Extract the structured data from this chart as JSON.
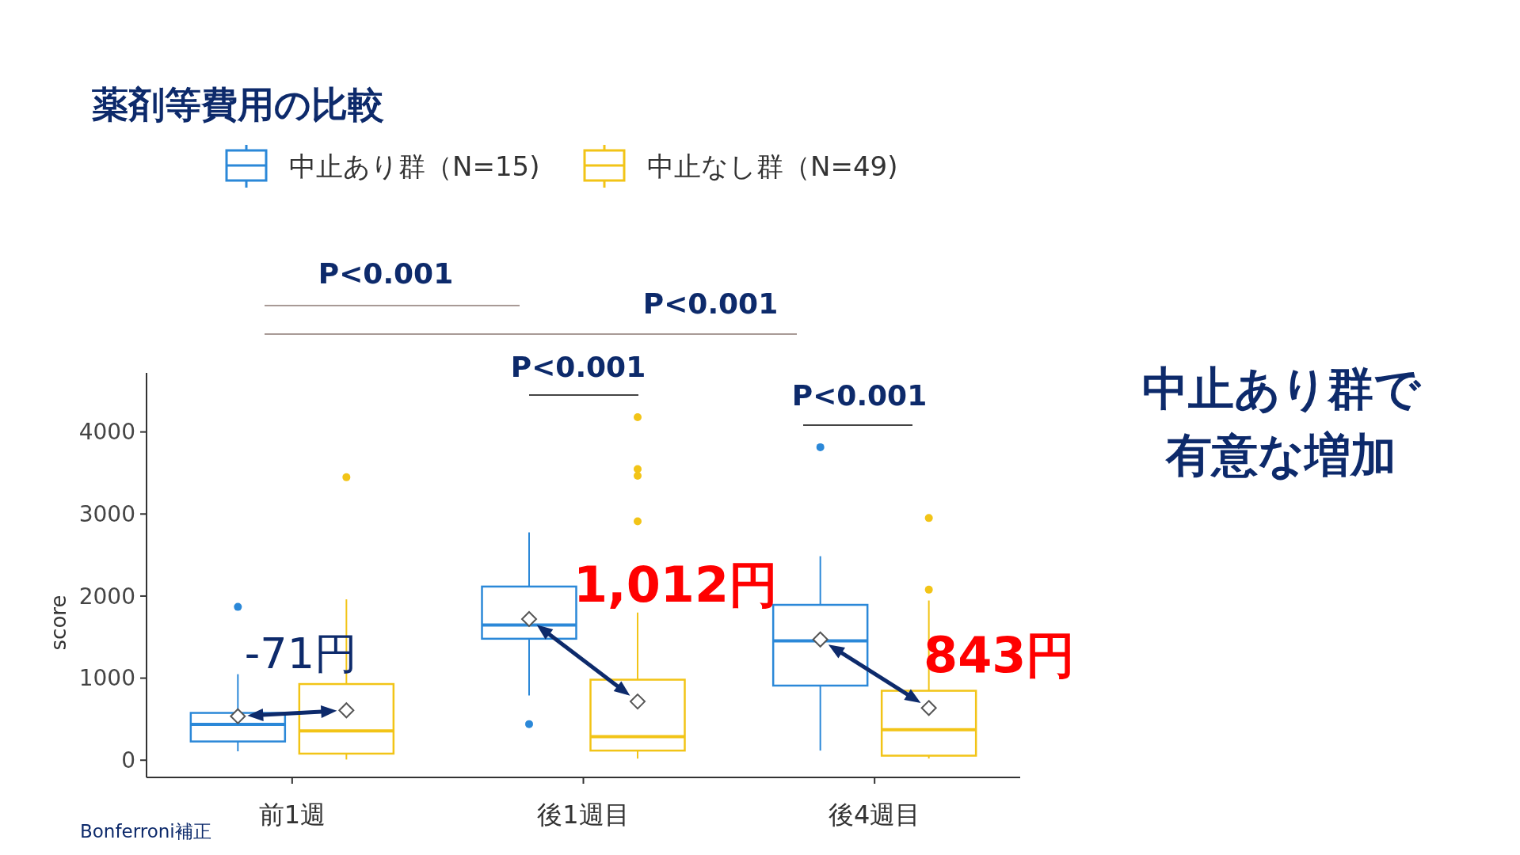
{
  "chart_data": {
    "type": "box",
    "title": "薬剤等費用の比較",
    "ylabel": "score",
    "categories": [
      "前1週",
      "後1週目",
      "後4週目"
    ],
    "ylim": [
      -210,
      4720
    ],
    "yticks": [
      0,
      1000,
      2000,
      3000,
      4000
    ],
    "grid": false,
    "legend": "top",
    "series": [
      {
        "name": "中止あり群（N=15)",
        "color": "#2b88d8",
        "boxes": [
          {
            "low": 108,
            "q1": 228,
            "median": 436,
            "q3": 576,
            "high": 1048,
            "mean": 536,
            "outliers": [
              1868
            ]
          },
          {
            "low": 788,
            "q1": 1480,
            "median": 1648,
            "q3": 2116,
            "high": 2776,
            "mean": 1720,
            "outliers": [
              440
            ]
          },
          {
            "low": 117,
            "q1": 909,
            "median": 1454,
            "q3": 1893,
            "high": 2486,
            "mean": 1471,
            "outliers": [
              3814
            ]
          }
        ]
      },
      {
        "name": "中止なし群（N=49)",
        "color": "#f2c417",
        "boxes": [
          {
            "low": 8,
            "q1": 80,
            "median": 356,
            "q3": 928,
            "high": 1960,
            "mean": 608,
            "outliers": [
              3448
            ]
          },
          {
            "low": 20,
            "q1": 117,
            "median": 286,
            "q3": 981,
            "high": 1800,
            "mean": 715,
            "outliers": [
              4180,
              3548,
              3465,
              2911
            ]
          },
          {
            "low": 20,
            "q1": 55,
            "median": 372,
            "q3": 846,
            "high": 1946,
            "mean": 636,
            "outliers": [
              2951,
              2078
            ]
          }
        ]
      }
    ],
    "annotations": [
      "P<0.001",
      "P<0.001",
      "P<0.001",
      "P<0.001",
      "-71円",
      "1,012円",
      "843円",
      "中止あり群で",
      "有意な増加",
      "Bonferroni補正"
    ]
  }
}
